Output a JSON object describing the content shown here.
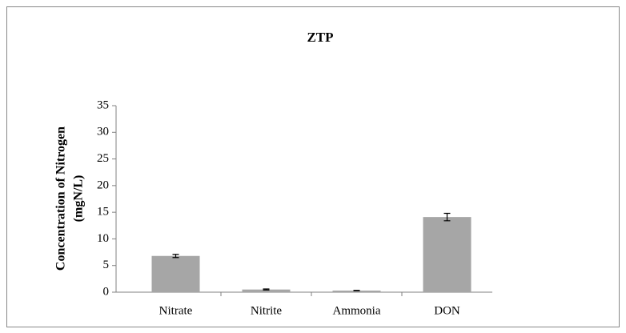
{
  "chart_data": {
    "type": "bar",
    "title": "ZTP",
    "ylabel": [
      "Concentration of Nitrogen",
      "(mgN/L)"
    ],
    "categories": [
      "Nitrate",
      "Nitrite",
      "Ammonia",
      "DON"
    ],
    "values": [
      6.8,
      0.5,
      0.3,
      14.1
    ],
    "errors": [
      0.3,
      0.1,
      0.05,
      0.7
    ],
    "color": "#a6a6a6",
    "ylim": [
      0,
      35
    ],
    "yticks": [
      0,
      5,
      10,
      15,
      20,
      25,
      30,
      35
    ],
    "grid": false
  }
}
